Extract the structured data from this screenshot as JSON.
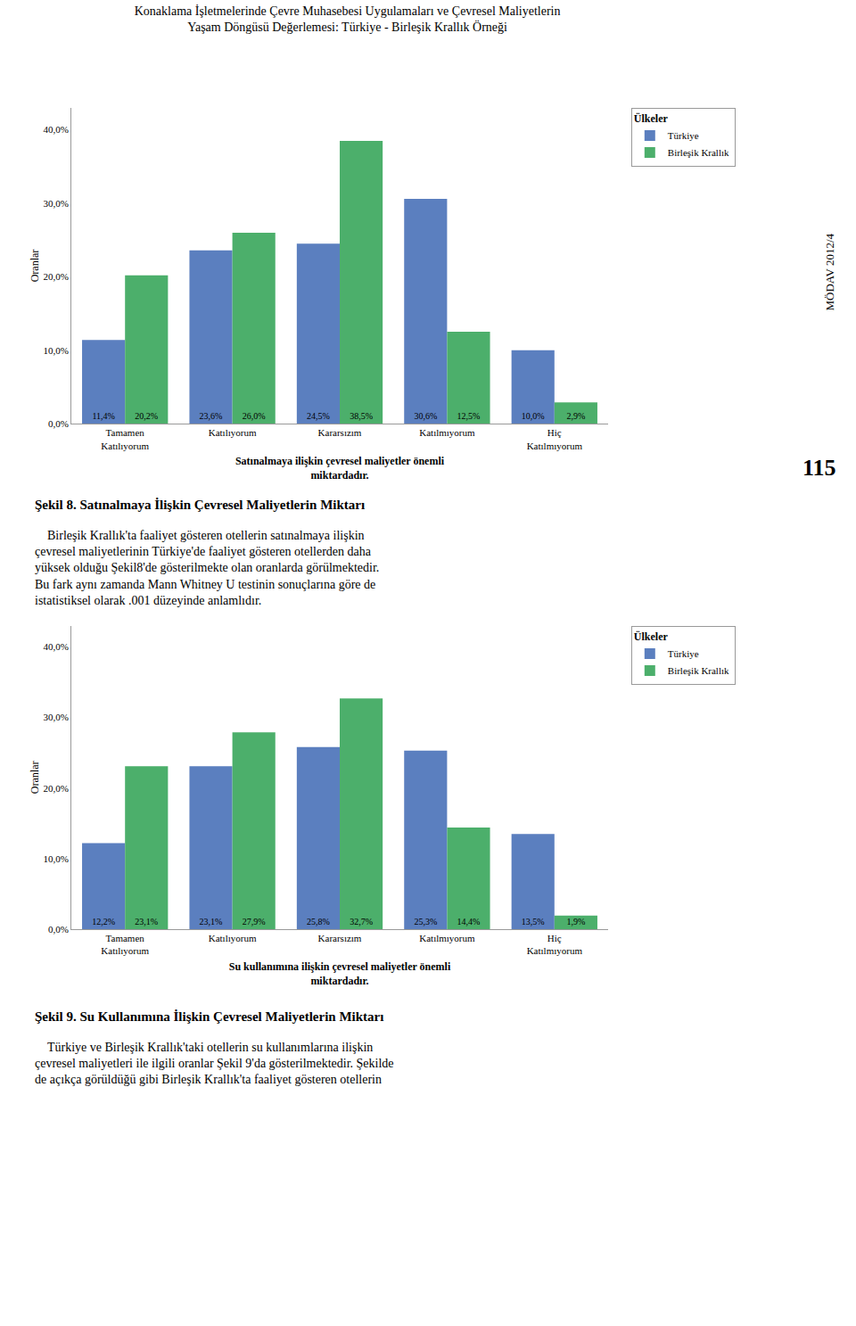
{
  "title": "Konaklama İşletmelerinde Çevre Muhasebesi Uygulamaları ve Çevresel Maliyetlerin\nYaşam Döngüsü Değerlemesi: Türkiye - Birleşik Krallık Örneği",
  "annotations": [
    "MÖDAV 2012/4",
    "115"
  ],
  "chart_data": [
    {
      "type": "bar",
      "title": "Şekil 8. Satınalmaya İlişkin Çevresel Maliyetlerin Miktarı",
      "annotations": [
        "    Birleşik Krallık'ta faaliyet gösteren otellerin satınalmaya ilişkin\nçevresel maliyetlerinin Türkiye'de faaliyet gösteren otellerden daha\nyüksek olduğu Şekil8'de gösterilmekte olan oranlarda görülmektedir.\nBu fark aynı zamanda Mann Whitney U testinin sonuçlarına göre de\nistatistiksel olarak .001 düzeyinde anlamlıdır."
      ],
      "xlabel": "Satınalmaya ilişkin çevresel maliyetler önemli\nmiktardadır.",
      "ylabel": "Oranlar",
      "categories": [
        "Tamamen\nKatılıyorum",
        "Katılıyorum",
        "Kararsızım",
        "Katılmıyorum",
        "Hiç\nKatılmıyorum"
      ],
      "series": [
        {
          "name": "Türkiye",
          "color": "#5B7FBF",
          "values": [
            11.4,
            23.6,
            24.5,
            30.6,
            10.0
          ],
          "value_labels": [
            "11,4%",
            "23,6%",
            "24,5%",
            "30,6%",
            "10,0%"
          ]
        },
        {
          "name": "Birleşik Krallık",
          "color": "#4CAF6B",
          "values": [
            20.2,
            26.0,
            38.5,
            12.5,
            2.9
          ],
          "value_labels": [
            "20,2%",
            "26,0%",
            "38,5%",
            "12,5%",
            "2,9%"
          ]
        }
      ],
      "ylim": [
        0,
        43
      ],
      "yticks": [
        {
          "value": 0,
          "label": "0,0%"
        },
        {
          "value": 10,
          "label": "10,0%"
        },
        {
          "value": 20,
          "label": "20,0%"
        },
        {
          "value": 30,
          "label": "30,0%"
        },
        {
          "value": 40,
          "label": "40,0%"
        }
      ],
      "grid": false,
      "legend": "right",
      "legend_title": "Ülkeler",
      "data_labels": true
    },
    {
      "type": "bar",
      "title": "Şekil 9. Su Kullanımına İlişkin Çevresel Maliyetlerin Miktarı",
      "annotations": [
        "    Türkiye ve Birleşik Krallık'taki otellerin su kullanımlarına ilişkin\nçevresel maliyetleri ile ilgili oranlar Şekil 9'da gösterilmektedir. Şekilde\nde açıkça görüldüğü gibi Birleşik Krallık'ta faaliyet gösteren otellerin"
      ],
      "xlabel": "Su kullanımına ilişkin çevresel maliyetler önemli\nmiktardadır.",
      "ylabel": "Oranlar",
      "categories": [
        "Tamamen\nKatılıyorum",
        "Katılıyorum",
        "Kararsızım",
        "Katılmıyorum",
        "Hiç\nKatılmıyorum"
      ],
      "series": [
        {
          "name": "Türkiye",
          "color": "#5B7FBF",
          "values": [
            12.2,
            23.1,
            25.8,
            25.3,
            13.5
          ],
          "value_labels": [
            "12,2%",
            "23,1%",
            "25,8%",
            "25,3%",
            "13,5%"
          ]
        },
        {
          "name": "Birleşik Krallık",
          "color": "#4CAF6B",
          "values": [
            23.1,
            27.9,
            32.7,
            14.4,
            1.9
          ],
          "value_labels": [
            "23,1%",
            "27,9%",
            "32,7%",
            "14,4%",
            "1,9%"
          ]
        }
      ],
      "ylim": [
        0,
        43
      ],
      "yticks": [
        {
          "value": 0,
          "label": "0,0%"
        },
        {
          "value": 10,
          "label": "10,0%"
        },
        {
          "value": 20,
          "label": "20,0%"
        },
        {
          "value": 30,
          "label": "30,0%"
        },
        {
          "value": 40,
          "label": "40,0%"
        }
      ],
      "grid": false,
      "legend": "right",
      "legend_title": "Ülkeler",
      "data_labels": true
    }
  ]
}
